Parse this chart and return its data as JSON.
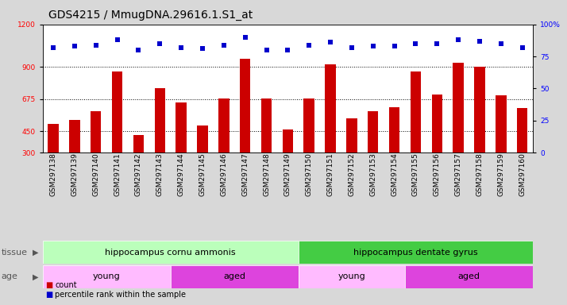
{
  "title": "GDS4215 / MmugDNA.29616.1.S1_at",
  "samples": [
    "GSM297138",
    "GSM297139",
    "GSM297140",
    "GSM297141",
    "GSM297142",
    "GSM297143",
    "GSM297144",
    "GSM297145",
    "GSM297146",
    "GSM297147",
    "GSM297148",
    "GSM297149",
    "GSM297150",
    "GSM297151",
    "GSM297152",
    "GSM297153",
    "GSM297154",
    "GSM297155",
    "GSM297156",
    "GSM297157",
    "GSM297158",
    "GSM297159",
    "GSM297160"
  ],
  "counts": [
    500,
    530,
    590,
    870,
    420,
    750,
    650,
    490,
    680,
    960,
    680,
    460,
    680,
    920,
    540,
    590,
    620,
    870,
    710,
    930,
    900,
    700,
    610
  ],
  "percentiles": [
    82,
    83,
    84,
    88,
    80,
    85,
    82,
    81,
    84,
    90,
    80,
    80,
    84,
    86,
    82,
    83,
    83,
    85,
    85,
    88,
    87,
    85,
    82
  ],
  "ylim_left": [
    300,
    1200
  ],
  "ylim_right": [
    0,
    100
  ],
  "yticks_left": [
    300,
    450,
    675,
    900,
    1200
  ],
  "yticks_right": [
    0,
    25,
    50,
    75,
    100
  ],
  "hlines": [
    450,
    675,
    900
  ],
  "bar_color": "#cc0000",
  "dot_color": "#0000cc",
  "tissue_groups": [
    {
      "label": "hippocampus cornu ammonis",
      "start": 0,
      "end": 12,
      "color": "#bbffbb"
    },
    {
      "label": "hippocampus dentate gyrus",
      "start": 12,
      "end": 23,
      "color": "#44cc44"
    }
  ],
  "age_groups": [
    {
      "label": "young",
      "start": 0,
      "end": 6,
      "color": "#ffbbff"
    },
    {
      "label": "aged",
      "start": 6,
      "end": 12,
      "color": "#dd44dd"
    },
    {
      "label": "young",
      "start": 12,
      "end": 17,
      "color": "#ffbbff"
    },
    {
      "label": "aged",
      "start": 17,
      "end": 23,
      "color": "#dd44dd"
    }
  ],
  "bg_color": "#d8d8d8",
  "plot_bg": "#ffffff",
  "title_fontsize": 10,
  "tick_fontsize": 6.5,
  "label_fontsize": 8,
  "band_fontsize": 8
}
